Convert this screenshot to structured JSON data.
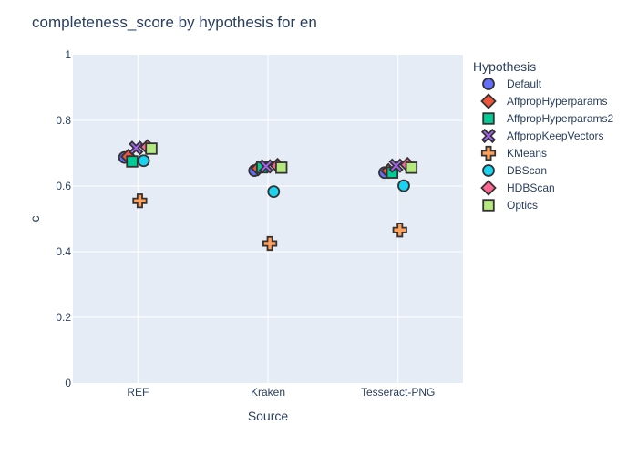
{
  "chart_data": {
    "type": "scatter",
    "title": "completeness_score by hypothesis for en",
    "xlabel": "Source",
    "ylabel": "c",
    "categories": [
      "REF",
      "Kraken",
      "Tesseract-PNG"
    ],
    "ylim": [
      0,
      1
    ],
    "yticks": [
      "0",
      "0.2",
      "0.4",
      "0.6",
      "0.8",
      "1"
    ],
    "grid": true,
    "legend": {
      "title": "Hypothesis",
      "placement": "right"
    },
    "series": [
      {
        "name": "Default",
        "marker": "circle",
        "color": "#636efa",
        "values": [
          0.687,
          0.647,
          0.641
        ]
      },
      {
        "name": "AffpropHyperparams",
        "marker": "diamond",
        "color": "#EF553B",
        "values": [
          0.69,
          0.654,
          0.646
        ]
      },
      {
        "name": "AffpropHyperparams2",
        "marker": "square",
        "color": "#00cc96",
        "values": [
          0.675,
          0.657,
          0.641
        ]
      },
      {
        "name": "AffpropKeepVectors",
        "marker": "x",
        "color": "#ab63fa",
        "values": [
          0.716,
          0.66,
          0.662
        ]
      },
      {
        "name": "KMeans",
        "marker": "cross",
        "color": "#FFA15A",
        "values": [
          0.555,
          0.425,
          0.466
        ]
      },
      {
        "name": "DBScan",
        "marker": "circle",
        "color": "#19d3f3",
        "values": [
          0.677,
          0.583,
          0.601
        ]
      },
      {
        "name": "HDBScan",
        "marker": "diamond",
        "color": "#FF6692",
        "values": [
          0.719,
          0.662,
          0.665
        ]
      },
      {
        "name": "Optics",
        "marker": "square",
        "color": "#B6E880",
        "values": [
          0.714,
          0.656,
          0.656
        ]
      }
    ]
  }
}
